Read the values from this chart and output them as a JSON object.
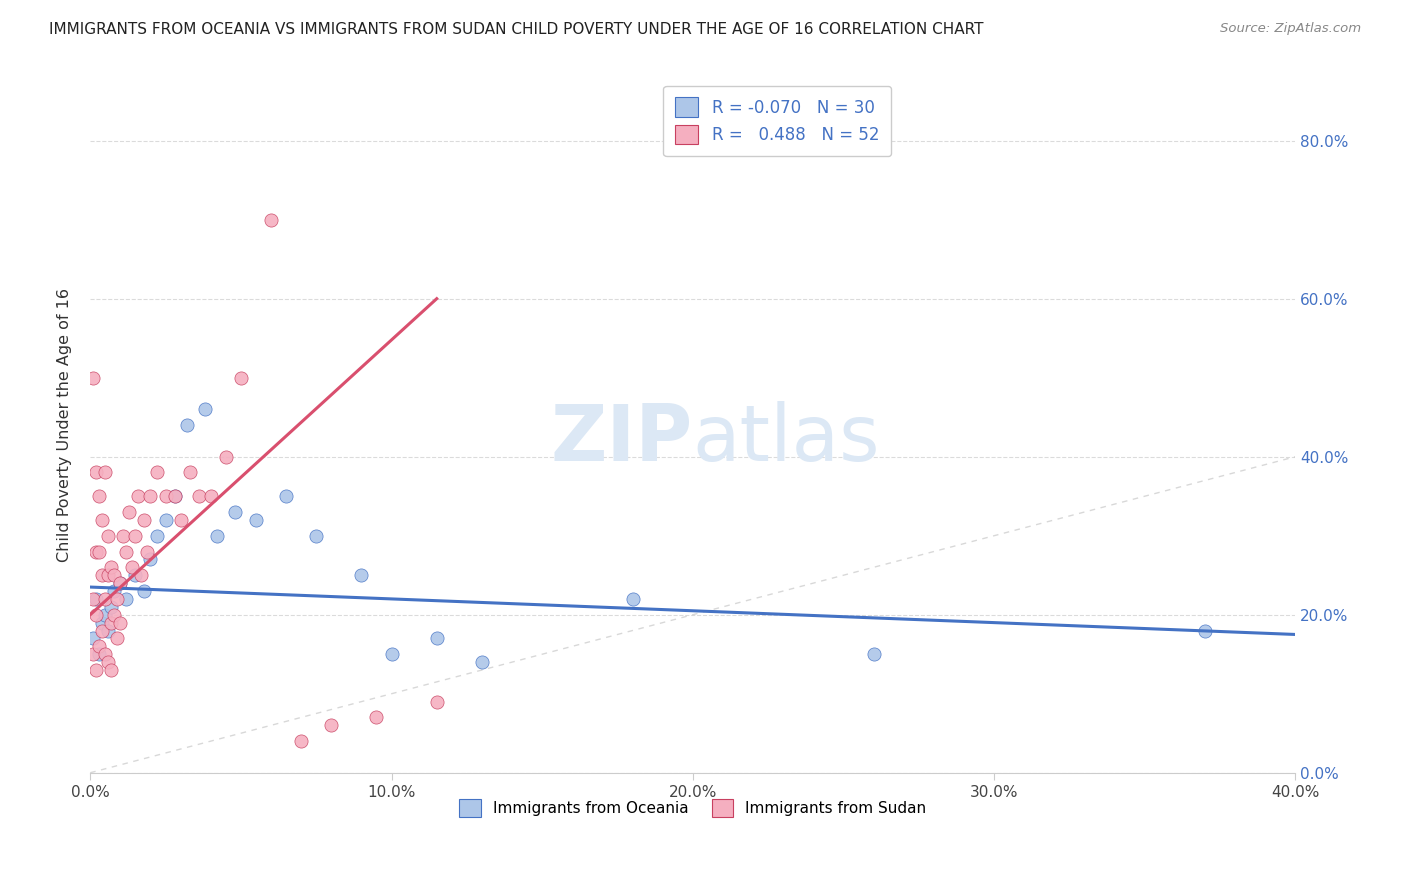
{
  "title": "IMMIGRANTS FROM OCEANIA VS IMMIGRANTS FROM SUDAN CHILD POVERTY UNDER THE AGE OF 16 CORRELATION CHART",
  "source": "Source: ZipAtlas.com",
  "ylabel_left": "Child Poverty Under the Age of 16",
  "legend_oceania": "Immigrants from Oceania",
  "legend_sudan": "Immigrants from Sudan",
  "R_oceania": "-0.070",
  "N_oceania": "30",
  "R_sudan": "0.488",
  "N_sudan": "52",
  "color_oceania": "#adc6e8",
  "color_sudan": "#f5afc0",
  "line_oceania": "#4472c4",
  "line_sudan": "#d94f6e",
  "line_diag": "#c8c8c8",
  "oceania_x": [
    0.001,
    0.002,
    0.003,
    0.004,
    0.005,
    0.006,
    0.007,
    0.008,
    0.01,
    0.012,
    0.015,
    0.018,
    0.02,
    0.022,
    0.025,
    0.028,
    0.032,
    0.038,
    0.042,
    0.048,
    0.055,
    0.065,
    0.075,
    0.09,
    0.1,
    0.115,
    0.13,
    0.18,
    0.26,
    0.37
  ],
  "oceania_y": [
    0.17,
    0.22,
    0.15,
    0.19,
    0.2,
    0.18,
    0.21,
    0.23,
    0.24,
    0.22,
    0.25,
    0.23,
    0.27,
    0.3,
    0.32,
    0.35,
    0.44,
    0.46,
    0.3,
    0.33,
    0.32,
    0.35,
    0.3,
    0.25,
    0.15,
    0.17,
    0.14,
    0.22,
    0.15,
    0.18
  ],
  "sudan_x": [
    0.001,
    0.001,
    0.001,
    0.002,
    0.002,
    0.002,
    0.002,
    0.003,
    0.003,
    0.003,
    0.004,
    0.004,
    0.004,
    0.005,
    0.005,
    0.005,
    0.006,
    0.006,
    0.006,
    0.007,
    0.007,
    0.007,
    0.008,
    0.008,
    0.009,
    0.009,
    0.01,
    0.01,
    0.011,
    0.012,
    0.013,
    0.014,
    0.015,
    0.016,
    0.017,
    0.018,
    0.019,
    0.02,
    0.022,
    0.025,
    0.028,
    0.03,
    0.033,
    0.036,
    0.04,
    0.045,
    0.05,
    0.06,
    0.07,
    0.08,
    0.095,
    0.115
  ],
  "sudan_y": [
    0.5,
    0.22,
    0.15,
    0.38,
    0.28,
    0.2,
    0.13,
    0.35,
    0.28,
    0.16,
    0.25,
    0.32,
    0.18,
    0.38,
    0.22,
    0.15,
    0.3,
    0.25,
    0.14,
    0.26,
    0.19,
    0.13,
    0.25,
    0.2,
    0.22,
    0.17,
    0.24,
    0.19,
    0.3,
    0.28,
    0.33,
    0.26,
    0.3,
    0.35,
    0.25,
    0.32,
    0.28,
    0.35,
    0.38,
    0.35,
    0.35,
    0.32,
    0.38,
    0.35,
    0.35,
    0.4,
    0.5,
    0.7,
    0.04,
    0.06,
    0.07,
    0.09
  ],
  "xlim": [
    0.0,
    0.4
  ],
  "ylim": [
    0.0,
    0.88
  ],
  "figsize": [
    14.06,
    8.92
  ],
  "dpi": 100,
  "oceania_line_x": [
    0.0,
    0.4
  ],
  "oceania_line_y": [
    0.235,
    0.175
  ],
  "sudan_line_x": [
    0.0,
    0.115
  ],
  "sudan_line_y": [
    0.2,
    0.6
  ]
}
